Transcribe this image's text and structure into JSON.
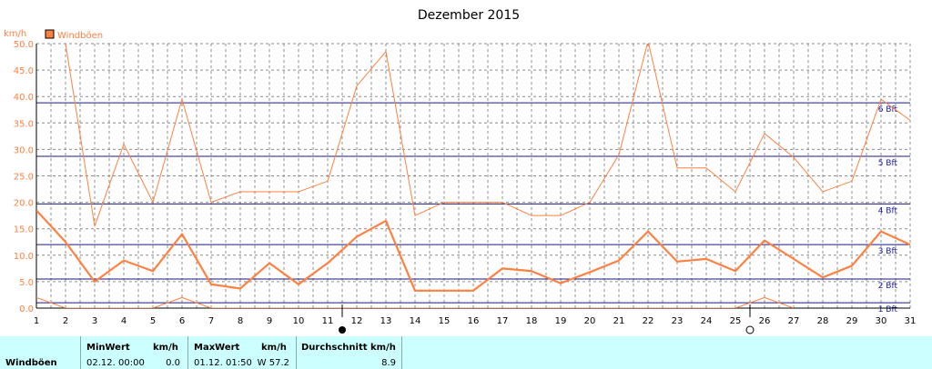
{
  "chart_data": {
    "type": "line",
    "title": "Dezember 2015",
    "ylabel": "km/h",
    "legend": {
      "label": "Windböen",
      "color": "#ff8040",
      "placement": "top-left"
    },
    "xlim": [
      1,
      31
    ],
    "ylim": [
      0,
      50
    ],
    "x_ticks": [
      "1",
      "2",
      "3",
      "4",
      "5",
      "6",
      "7",
      "8",
      "9",
      "10",
      "11",
      "12",
      "13",
      "14",
      "15",
      "16",
      "17",
      "18",
      "19",
      "20",
      "21",
      "22",
      "23",
      "24",
      "25",
      "26",
      "27",
      "28",
      "29",
      "30",
      "31"
    ],
    "y_ticks": [
      "0.0",
      "5.0",
      "10.0",
      "15.0",
      "20.0",
      "25.0",
      "30.0",
      "35.0",
      "40.0",
      "45.0",
      "50.0"
    ],
    "grid": true,
    "beaufort_lines": [
      {
        "label": "1 Bft",
        "value": 1
      },
      {
        "label": "2 Bft",
        "value": 5.5
      },
      {
        "label": "3 Bft",
        "value": 12
      },
      {
        "label": "4 Bft",
        "value": 19.7
      },
      {
        "label": "5 Bft",
        "value": 28.7
      },
      {
        "label": "6 Bft",
        "value": 38.8
      }
    ],
    "moon_phases": [
      {
        "symbol": "full-moon",
        "x": 11.5
      },
      {
        "symbol": "new-moon",
        "x": 25.5
      }
    ],
    "series": [
      {
        "role": "max",
        "x": [
          1,
          2,
          3,
          4,
          5,
          6,
          7,
          8,
          9,
          10,
          11,
          12,
          13,
          14,
          15,
          16,
          17,
          18,
          19,
          20,
          21,
          22,
          23,
          24,
          25,
          26,
          27,
          28,
          29,
          30,
          31
        ],
        "values": [
          57.2,
          50.0,
          15.5,
          31.0,
          20.0,
          39.5,
          20.0,
          22.0,
          22.0,
          22.0,
          24.0,
          42.0,
          48.5,
          17.5,
          20.0,
          20.0,
          20.0,
          17.5,
          17.5,
          20.0,
          29.0,
          50.5,
          26.5,
          26.5,
          22.0,
          33.0,
          28.5,
          22.0,
          24.0,
          39.5,
          35.5
        ],
        "color": "#ff8040"
      },
      {
        "role": "average",
        "x": [
          1,
          2,
          3,
          4,
          5,
          6,
          7,
          8,
          9,
          10,
          11,
          12,
          13,
          14,
          15,
          16,
          17,
          18,
          19,
          20,
          21,
          22,
          23,
          24,
          25,
          26,
          27,
          28,
          29,
          30,
          31
        ],
        "values": [
          18.5,
          12.5,
          5.0,
          9.0,
          7.0,
          14.0,
          4.5,
          3.7,
          8.5,
          4.5,
          8.5,
          13.5,
          16.5,
          3.3,
          3.3,
          3.3,
          7.5,
          7.0,
          4.7,
          6.8,
          9.0,
          14.5,
          8.8,
          9.3,
          7.0,
          12.8,
          9.3,
          5.8,
          8.0,
          14.5,
          12.0
        ],
        "color": "#ff8040"
      },
      {
        "role": "min",
        "x": [
          1,
          2,
          5,
          6,
          7,
          25,
          26,
          27
        ],
        "values": [
          2.0,
          0.0,
          0.0,
          2.0,
          0.0,
          0.0,
          2.0,
          0.0
        ],
        "color": "#ff8040"
      }
    ]
  },
  "stats": {
    "row_label": "Windböen",
    "min_header": "MinWert",
    "min_unit_header": "km/h",
    "min_date": "02.12.  00:00",
    "min_value": "0.0",
    "max_header": "MaxWert",
    "max_unit_header": "km/h",
    "max_date": "01.12.  01:50",
    "max_value": "W 57.2",
    "avg_header": "Durchschnitt km/h",
    "avg_value": "8.9"
  }
}
